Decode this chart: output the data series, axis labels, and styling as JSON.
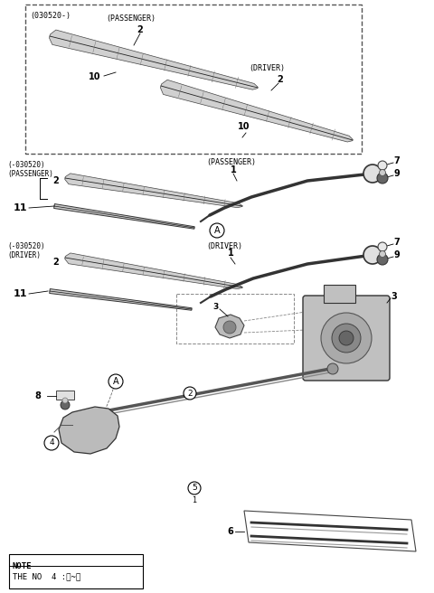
{
  "bg_color": "#ffffff",
  "line_color": "#000000",
  "fig_width": 4.8,
  "fig_height": 6.56,
  "dpi": 100,
  "labels": {
    "box_label": "(030520-)",
    "passenger_top": "(PASSENGER)",
    "driver_top": "(DRIVER)",
    "neg_passenger_1": "(-030520)",
    "neg_passenger_2": "(PASSENGER)",
    "neg_driver_1": "(-030520)",
    "neg_driver_2": "(DRIVER)",
    "passenger_arm": "(PASSENGER)",
    "driver_arm": "(DRIVER)"
  },
  "note_line1": "NOTE",
  "note_line2": "THE NO  4 :①~④"
}
